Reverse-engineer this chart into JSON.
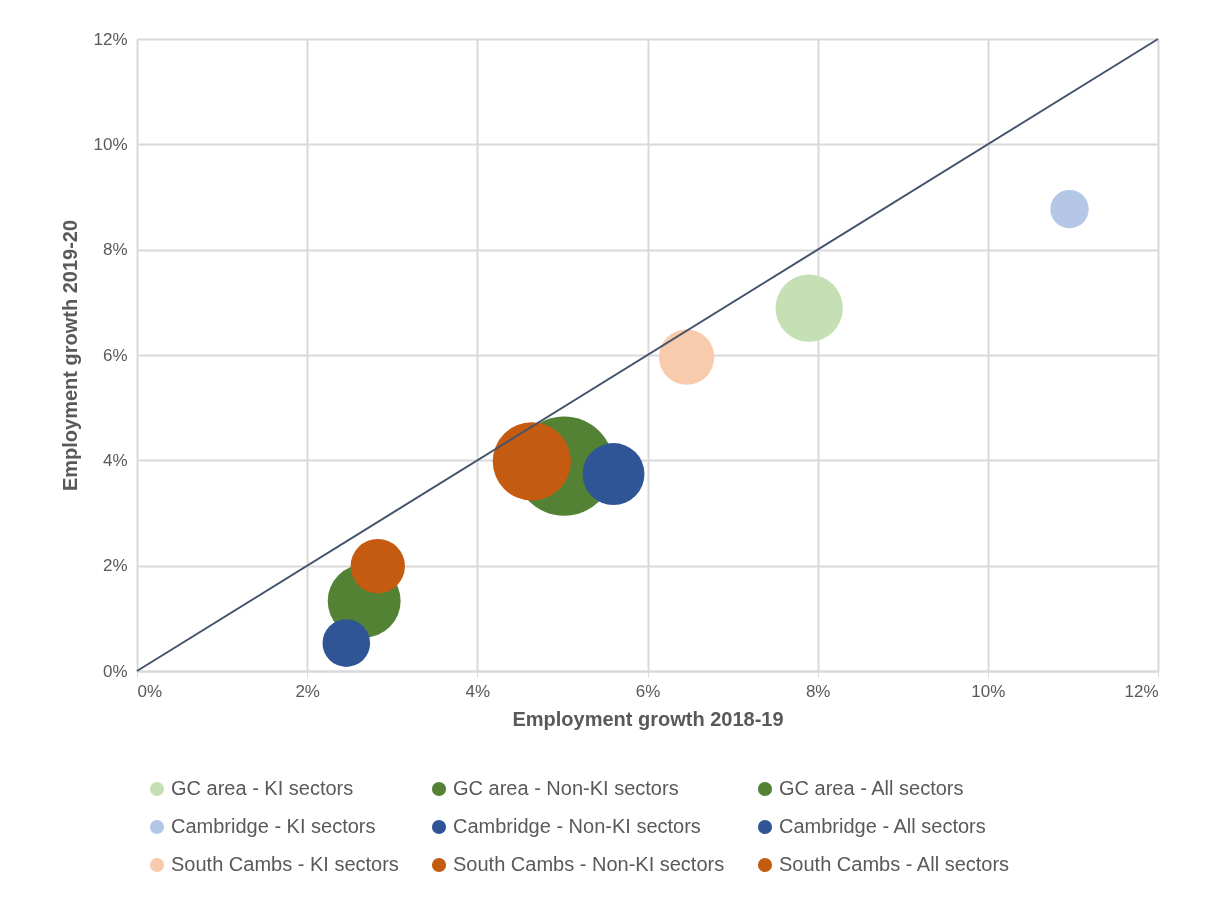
{
  "chart_data": {
    "type": "bubble",
    "xlabel": "Employment growth 2018-19",
    "ylabel": "Employment growth 2019-20",
    "xlim": [
      0,
      12
    ],
    "ylim": [
      0,
      12
    ],
    "xticks": [
      {
        "value": 0,
        "label": "0%"
      },
      {
        "value": 2,
        "label": "2%"
      },
      {
        "value": 4,
        "label": "4%"
      },
      {
        "value": 6,
        "label": "6%"
      },
      {
        "value": 8,
        "label": "8%"
      },
      {
        "value": 10,
        "label": "10%"
      },
      {
        "value": 12,
        "label": "12%"
      }
    ],
    "yticks": [
      {
        "value": 0,
        "label": "0%"
      },
      {
        "value": 2,
        "label": "2%"
      },
      {
        "value": 4,
        "label": "4%"
      },
      {
        "value": 6,
        "label": "6%"
      },
      {
        "value": 8,
        "label": "8%"
      },
      {
        "value": 10,
        "label": "10%"
      },
      {
        "value": 12,
        "label": "12%"
      }
    ],
    "grid": true,
    "legend": "bottom",
    "series": [
      {
        "name": "GC area - KI sectors",
        "color": "#c5e0b4",
        "x": [
          7.9
        ],
        "values": [
          6.89
        ],
        "sizes": [
          0.46
        ]
      },
      {
        "name": "GC area - Non-KI sectors",
        "color": "#548235",
        "x": [
          2.67
        ],
        "values": [
          1.33
        ],
        "sizes": [
          0.54
        ]
      },
      {
        "name": "GC area - All sectors",
        "color": "#548235",
        "x": [
          5.02
        ],
        "values": [
          3.89
        ],
        "sizes": [
          1
        ]
      },
      {
        "name": "Cambridge - KI sectors",
        "color": "#b4c7e7",
        "x": [
          10.96
        ],
        "values": [
          8.77
        ],
        "sizes": [
          0.15
        ]
      },
      {
        "name": "Cambridge - Non-KI sectors",
        "color": "#2f5597",
        "x": [
          2.46
        ],
        "values": [
          0.53
        ],
        "sizes": [
          0.23
        ]
      },
      {
        "name": "Cambridge - All sectors",
        "color": "#2f5597",
        "x": [
          5.6
        ],
        "values": [
          3.74
        ],
        "sizes": [
          0.39
        ]
      },
      {
        "name": "South Cambs - KI sectors",
        "color": "#f8cbad",
        "x": [
          6.46
        ],
        "values": [
          5.96
        ],
        "sizes": [
          0.31
        ]
      },
      {
        "name": "South Cambs - Non-KI sectors",
        "color": "#c55a11",
        "x": [
          2.83
        ],
        "values": [
          1.99
        ],
        "sizes": [
          0.3
        ]
      },
      {
        "name": "South Cambs - All sectors",
        "color": "#c55a11",
        "x": [
          4.64
        ],
        "values": [
          3.98
        ],
        "sizes": [
          0.62
        ]
      },
      {
        "type": "line",
        "color": "#44546a",
        "x": [
          0,
          12
        ],
        "values": [
          0,
          12
        ],
        "line_style": "solid"
      }
    ]
  }
}
